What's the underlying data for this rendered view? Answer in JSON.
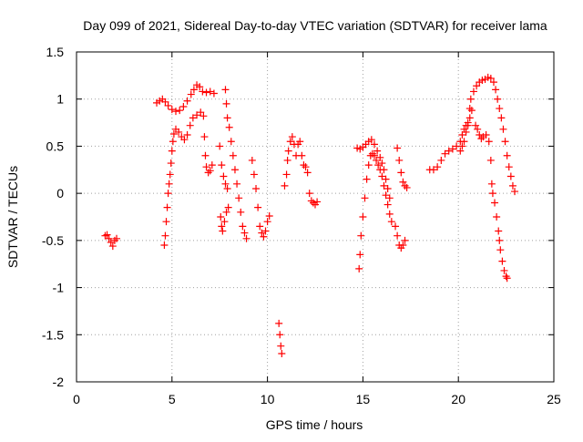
{
  "chart_data": {
    "type": "scatter",
    "title": "Day 099 of 2021, Sidereal Day-to-day VTEC variation (SDTVAR) for receiver lama",
    "xlabel": "GPS time / hours",
    "ylabel": "SDTVAR / TECUs",
    "xlim": [
      0,
      25
    ],
    "ylim": [
      -2,
      1.5
    ],
    "xticks": [
      0,
      5,
      10,
      15,
      20,
      25
    ],
    "xtick_labels": [
      "0",
      "5",
      "10",
      "15",
      "20",
      "25"
    ],
    "yticks": [
      -2,
      -1.5,
      -1,
      -0.5,
      0,
      0.5,
      1,
      1.5
    ],
    "ytick_labels": [
      "-2",
      "-1.5",
      "-1",
      "-0.5",
      "0",
      "0.5",
      "1",
      "1.5"
    ],
    "grid": true,
    "marker": "+",
    "marker_color": "#ff0000",
    "series": [
      {
        "name": "SDTVAR",
        "points": [
          [
            1.5,
            -0.45
          ],
          [
            1.6,
            -0.44
          ],
          [
            1.7,
            -0.48
          ],
          [
            1.8,
            -0.52
          ],
          [
            1.9,
            -0.56
          ],
          [
            2.0,
            -0.5
          ],
          [
            2.1,
            -0.48
          ],
          [
            4.2,
            0.96
          ],
          [
            4.35,
            0.98
          ],
          [
            4.5,
            1.0
          ],
          [
            4.65,
            0.97
          ],
          [
            4.8,
            0.93
          ],
          [
            5.0,
            0.89
          ],
          [
            5.2,
            0.87
          ],
          [
            5.4,
            0.88
          ],
          [
            5.6,
            0.92
          ],
          [
            5.8,
            0.98
          ],
          [
            6.0,
            1.05
          ],
          [
            6.15,
            1.1
          ],
          [
            6.3,
            1.15
          ],
          [
            6.45,
            1.13
          ],
          [
            6.6,
            1.08
          ],
          [
            6.8,
            1.07
          ],
          [
            7.0,
            1.08
          ],
          [
            7.2,
            1.06
          ],
          [
            4.6,
            -0.55
          ],
          [
            4.65,
            -0.45
          ],
          [
            4.7,
            -0.3
          ],
          [
            4.75,
            -0.15
          ],
          [
            4.8,
            0.0
          ],
          [
            4.85,
            0.1
          ],
          [
            4.9,
            0.2
          ],
          [
            4.95,
            0.32
          ],
          [
            5.0,
            0.45
          ],
          [
            5.05,
            0.55
          ],
          [
            5.1,
            0.63
          ],
          [
            5.2,
            0.68
          ],
          [
            5.35,
            0.65
          ],
          [
            5.5,
            0.6
          ],
          [
            5.65,
            0.57
          ],
          [
            5.8,
            0.62
          ],
          [
            5.95,
            0.72
          ],
          [
            6.1,
            0.8
          ],
          [
            6.3,
            0.83
          ],
          [
            6.5,
            0.86
          ],
          [
            6.65,
            0.82
          ],
          [
            6.7,
            0.6
          ],
          [
            6.75,
            0.4
          ],
          [
            6.8,
            0.28
          ],
          [
            6.9,
            0.22
          ],
          [
            7.0,
            0.24
          ],
          [
            7.1,
            0.3
          ],
          [
            7.5,
            0.5
          ],
          [
            7.6,
            0.3
          ],
          [
            7.7,
            0.18
          ],
          [
            7.8,
            0.1
          ],
          [
            7.9,
            0.05
          ],
          [
            7.55,
            -0.25
          ],
          [
            7.6,
            -0.35
          ],
          [
            7.65,
            -0.4
          ],
          [
            7.75,
            -0.3
          ],
          [
            7.85,
            -0.2
          ],
          [
            7.95,
            -0.15
          ],
          [
            7.8,
            1.1
          ],
          [
            7.85,
            0.95
          ],
          [
            7.9,
            0.8
          ],
          [
            8.0,
            0.7
          ],
          [
            8.1,
            0.55
          ],
          [
            8.2,
            0.4
          ],
          [
            8.3,
            0.25
          ],
          [
            8.4,
            0.1
          ],
          [
            8.5,
            -0.05
          ],
          [
            8.6,
            -0.2
          ],
          [
            8.7,
            -0.35
          ],
          [
            8.8,
            -0.42
          ],
          [
            8.9,
            -0.48
          ],
          [
            9.2,
            0.35
          ],
          [
            9.3,
            0.2
          ],
          [
            9.4,
            0.05
          ],
          [
            9.5,
            -0.15
          ],
          [
            9.6,
            -0.35
          ],
          [
            9.7,
            -0.42
          ],
          [
            9.8,
            -0.46
          ],
          [
            9.9,
            -0.4
          ],
          [
            10.0,
            -0.3
          ],
          [
            10.1,
            -0.24
          ],
          [
            10.6,
            -1.38
          ],
          [
            10.65,
            -1.5
          ],
          [
            10.7,
            -1.62
          ],
          [
            10.75,
            -1.7
          ],
          [
            10.9,
            0.08
          ],
          [
            11.0,
            0.2
          ],
          [
            11.05,
            0.35
          ],
          [
            11.1,
            0.45
          ],
          [
            11.2,
            0.55
          ],
          [
            11.3,
            0.6
          ],
          [
            11.4,
            0.52
          ],
          [
            11.5,
            0.4
          ],
          [
            11.6,
            0.52
          ],
          [
            11.7,
            0.55
          ],
          [
            11.8,
            0.4
          ],
          [
            11.9,
            0.3
          ],
          [
            12.0,
            0.28
          ],
          [
            12.1,
            0.22
          ],
          [
            12.2,
            0.0
          ],
          [
            12.3,
            -0.08
          ],
          [
            12.4,
            -0.1
          ],
          [
            12.5,
            -0.12
          ],
          [
            12.6,
            -0.09
          ],
          [
            14.7,
            0.48
          ],
          [
            14.85,
            0.47
          ],
          [
            15.0,
            0.49
          ],
          [
            15.15,
            0.52
          ],
          [
            15.3,
            0.55
          ],
          [
            15.45,
            0.57
          ],
          [
            15.6,
            0.52
          ],
          [
            15.75,
            0.45
          ],
          [
            15.9,
            0.38
          ],
          [
            16.0,
            0.32
          ],
          [
            16.1,
            0.25
          ],
          [
            16.2,
            0.15
          ],
          [
            16.3,
            0.05
          ],
          [
            16.4,
            -0.05
          ],
          [
            14.8,
            -0.8
          ],
          [
            14.85,
            -0.65
          ],
          [
            14.9,
            -0.45
          ],
          [
            15.0,
            -0.25
          ],
          [
            15.1,
            -0.05
          ],
          [
            15.2,
            0.15
          ],
          [
            15.3,
            0.3
          ],
          [
            15.4,
            0.4
          ],
          [
            15.5,
            0.42
          ],
          [
            15.6,
            0.4
          ],
          [
            15.7,
            0.35
          ],
          [
            15.8,
            0.3
          ],
          [
            15.9,
            0.25
          ],
          [
            16.0,
            0.18
          ],
          [
            16.1,
            0.08
          ],
          [
            16.2,
            -0.02
          ],
          [
            16.3,
            -0.12
          ],
          [
            16.4,
            -0.22
          ],
          [
            16.5,
            -0.3
          ],
          [
            16.7,
            -0.35
          ],
          [
            16.8,
            -0.45
          ],
          [
            16.9,
            -0.55
          ],
          [
            17.0,
            -0.58
          ],
          [
            17.1,
            -0.55
          ],
          [
            17.2,
            -0.5
          ],
          [
            16.8,
            0.48
          ],
          [
            16.9,
            0.35
          ],
          [
            17.0,
            0.22
          ],
          [
            17.1,
            0.12
          ],
          [
            17.2,
            0.08
          ],
          [
            17.3,
            0.06
          ],
          [
            18.5,
            0.25
          ],
          [
            18.7,
            0.25
          ],
          [
            18.9,
            0.28
          ],
          [
            19.1,
            0.35
          ],
          [
            19.3,
            0.42
          ],
          [
            19.5,
            0.45
          ],
          [
            19.7,
            0.47
          ],
          [
            19.9,
            0.5
          ],
          [
            20.1,
            0.55
          ],
          [
            20.2,
            0.62
          ],
          [
            20.3,
            0.68
          ],
          [
            20.4,
            0.72
          ],
          [
            20.5,
            0.75
          ],
          [
            20.6,
            0.9
          ],
          [
            20.1,
            0.45
          ],
          [
            20.2,
            0.5
          ],
          [
            20.3,
            0.55
          ],
          [
            20.4,
            0.65
          ],
          [
            20.5,
            0.72
          ],
          [
            20.6,
            0.8
          ],
          [
            20.7,
            0.88
          ],
          [
            20.65,
            1.0
          ],
          [
            20.8,
            1.08
          ],
          [
            20.95,
            1.14
          ],
          [
            21.1,
            1.18
          ],
          [
            21.25,
            1.2
          ],
          [
            21.4,
            1.21
          ],
          [
            21.55,
            1.23
          ],
          [
            21.7,
            1.22
          ],
          [
            21.85,
            1.18
          ],
          [
            21.95,
            1.1
          ],
          [
            22.05,
            1.0
          ],
          [
            22.15,
            0.9
          ],
          [
            22.25,
            0.8
          ],
          [
            22.35,
            0.68
          ],
          [
            22.45,
            0.55
          ],
          [
            22.55,
            0.4
          ],
          [
            22.65,
            0.28
          ],
          [
            22.75,
            0.18
          ],
          [
            22.85,
            0.08
          ],
          [
            22.95,
            0.02
          ],
          [
            20.9,
            0.72
          ],
          [
            21.0,
            0.68
          ],
          [
            21.1,
            0.62
          ],
          [
            21.2,
            0.58
          ],
          [
            21.3,
            0.6
          ],
          [
            21.45,
            0.62
          ],
          [
            21.6,
            0.55
          ],
          [
            21.7,
            0.35
          ],
          [
            21.75,
            0.1
          ],
          [
            21.8,
            0.0
          ],
          [
            21.9,
            -0.1
          ],
          [
            22.0,
            -0.25
          ],
          [
            22.1,
            -0.4
          ],
          [
            22.15,
            -0.5
          ],
          [
            22.2,
            -0.6
          ],
          [
            22.3,
            -0.72
          ],
          [
            22.4,
            -0.82
          ],
          [
            22.5,
            -0.88
          ],
          [
            22.55,
            -0.9
          ]
        ]
      }
    ]
  }
}
